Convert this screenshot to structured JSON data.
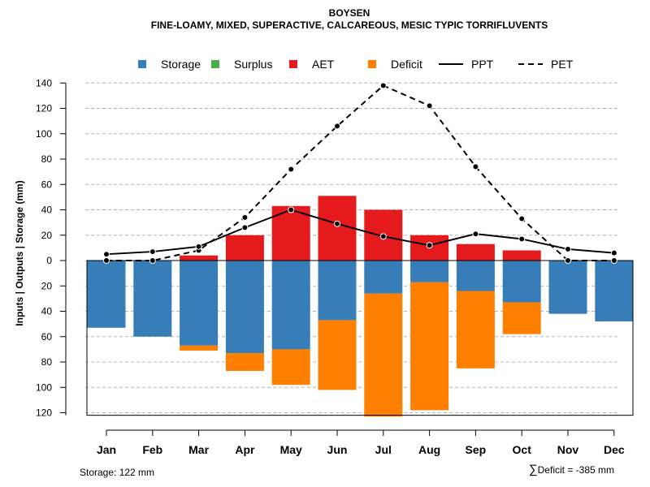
{
  "chart_data": {
    "type": "bar",
    "title": "BOYSEN",
    "subtitle": "FINE-LOAMY, MIXED, SUPERACTIVE, CALCAREOUS, MESIC TYPIC TORRIFLUVENTS",
    "ylabel": "Inputs | Outputs | Storage    (mm)",
    "ylim": [
      -122,
      140
    ],
    "ytick_values": [
      140,
      120,
      100,
      80,
      60,
      40,
      20,
      0,
      -20,
      -40,
      -60,
      -80,
      -100,
      -120
    ],
    "ytick_labels": [
      "140",
      "120",
      "100",
      "80",
      "60",
      "40",
      "20",
      "0",
      "20",
      "40",
      "60",
      "80",
      "100",
      "120"
    ],
    "categories": [
      "Jan",
      "Feb",
      "Mar",
      "Apr",
      "May",
      "Jun",
      "Jul",
      "Aug",
      "Sep",
      "Oct",
      "Nov",
      "Dec"
    ],
    "legend": [
      {
        "label": "Storage",
        "kind": "box",
        "color": "#377eb8"
      },
      {
        "label": "Surplus",
        "kind": "box",
        "color": "#4daf4a"
      },
      {
        "label": "AET",
        "kind": "box",
        "color": "#e41a1c"
      },
      {
        "label": "Deficit",
        "kind": "box",
        "color": "#ff7f00"
      },
      {
        "label": "PPT",
        "kind": "line-solid",
        "color": "#000000"
      },
      {
        "label": "PET",
        "kind": "line-dashed",
        "color": "#000000"
      }
    ],
    "series": [
      {
        "name": "AET",
        "color": "#e41a1c",
        "values": [
          0,
          0,
          4,
          20,
          43,
          51,
          40,
          20,
          13,
          8,
          0,
          0
        ]
      },
      {
        "name": "Storage",
        "color": "#377eb8",
        "values": [
          53,
          60,
          67,
          73,
          70,
          47,
          26,
          17,
          24,
          33,
          42,
          48
        ]
      },
      {
        "name": "Deficit",
        "color": "#ff7f00",
        "values": [
          0,
          0,
          4,
          14,
          28,
          55,
          97,
          101,
          61,
          25,
          0,
          0
        ]
      },
      {
        "name": "PPT",
        "color": "#000000",
        "values": [
          5,
          7,
          11,
          26,
          40,
          29,
          19,
          12,
          21,
          17,
          9,
          6
        ]
      },
      {
        "name": "PET",
        "color": "#000000",
        "values": [
          0,
          0,
          8,
          34,
          72,
          106,
          138,
          122,
          74,
          33,
          0,
          0
        ]
      }
    ],
    "storage_capacity": 122
  },
  "footer": {
    "storage_note": "Storage: 122 mm",
    "deficit_sigma": "∑",
    "deficit_note": "Deficit = -385 mm"
  }
}
